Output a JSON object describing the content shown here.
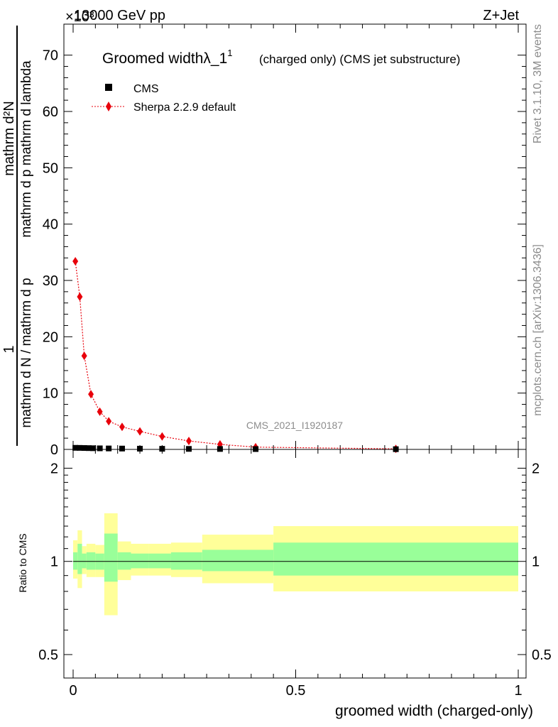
{
  "header": {
    "left": "13000 GeV pp",
    "right": "Z+Jet",
    "exponent": "×10³"
  },
  "side": {
    "rivet": "Rivet 3.1.10,  3M events",
    "mcplots": "mcplots.cern.ch [arXiv:1306.3436]"
  },
  "colors": {
    "sherpa": "#e8000b",
    "band_inner": "#99ff99",
    "band_outer": "#ffff99",
    "data": "#000000"
  },
  "chart_data": [
    {
      "type": "line",
      "title": "Groomed widthλ_1",
      "title_sup": "1",
      "subtitle": "(charged only) (CMS jet substructure)",
      "ylabel_numerator": "mathrm d²N",
      "ylabel_numer_top": "1",
      "ylabel_main": "mathrm d N / mathrm d p",
      "ylabel_full": "mathrm d p  mathrm d lambda",
      "watermark": "CMS_2021_I1920187",
      "xlim": [
        0,
        1
      ],
      "ylim": [
        0,
        75
      ],
      "yticks": [
        0,
        10,
        20,
        30,
        40,
        50,
        60,
        70
      ],
      "legend": {
        "placement": "top-left",
        "entries": [
          "CMS",
          "Sherpa 2.2.9 default"
        ]
      },
      "series": [
        {
          "name": "CMS",
          "x": [
            0.005,
            0.015,
            0.025,
            0.035,
            0.045,
            0.06,
            0.08,
            0.11,
            0.15,
            0.2,
            0.26,
            0.33,
            0.41,
            0.725
          ],
          "values": [
            0.28,
            0.27,
            0.25,
            0.23,
            0.21,
            0.19,
            0.17,
            0.15,
            0.13,
            0.11,
            0.09,
            0.08,
            0.06,
            0.04
          ]
        },
        {
          "name": "Sherpa 2.2.9 default",
          "x": [
            0.005,
            0.015,
            0.025,
            0.04,
            0.06,
            0.08,
            0.11,
            0.15,
            0.2,
            0.26,
            0.33,
            0.41,
            0.725
          ],
          "values": [
            33.4,
            27.1,
            16.6,
            9.8,
            6.7,
            5.0,
            4.0,
            3.2,
            2.3,
            1.5,
            0.9,
            0.4,
            0.1
          ]
        }
      ]
    },
    {
      "type": "area",
      "ylabel": "Ratio to CMS",
      "xlabel": "groomed width (charged-only)",
      "xlim": [
        0,
        1
      ],
      "xticks": [
        0,
        0.5,
        1
      ],
      "xtick_labels": [
        "0",
        "0.5",
        "1"
      ],
      "ylim": [
        0.42,
        2.3
      ],
      "yticks": [
        0.5,
        1,
        2
      ],
      "ytick_labels": [
        "0.5",
        "1",
        "2"
      ],
      "reference": 1,
      "bands": [
        {
          "x0": 0.0,
          "x1": 0.01,
          "in_lo": 0.94,
          "in_hi": 1.07,
          "out_lo": 0.88,
          "out_hi": 1.17
        },
        {
          "x0": 0.01,
          "x1": 0.02,
          "in_lo": 0.91,
          "in_hi": 1.14,
          "out_lo": 0.82,
          "out_hi": 1.26
        },
        {
          "x0": 0.02,
          "x1": 0.03,
          "in_lo": 0.95,
          "in_hi": 1.06,
          "out_lo": 0.91,
          "out_hi": 1.12
        },
        {
          "x0": 0.03,
          "x1": 0.05,
          "in_lo": 0.94,
          "in_hi": 1.07,
          "out_lo": 0.89,
          "out_hi": 1.14
        },
        {
          "x0": 0.05,
          "x1": 0.07,
          "in_lo": 0.94,
          "in_hi": 1.06,
          "out_lo": 0.89,
          "out_hi": 1.13
        },
        {
          "x0": 0.07,
          "x1": 0.1,
          "in_lo": 0.86,
          "in_hi": 1.23,
          "out_lo": 0.67,
          "out_hi": 1.43
        },
        {
          "x0": 0.1,
          "x1": 0.13,
          "in_lo": 0.94,
          "in_hi": 1.07,
          "out_lo": 0.87,
          "out_hi": 1.16
        },
        {
          "x0": 0.13,
          "x1": 0.17,
          "in_lo": 0.95,
          "in_hi": 1.06,
          "out_lo": 0.9,
          "out_hi": 1.14
        },
        {
          "x0": 0.17,
          "x1": 0.22,
          "in_lo": 0.95,
          "in_hi": 1.06,
          "out_lo": 0.9,
          "out_hi": 1.14
        },
        {
          "x0": 0.22,
          "x1": 0.29,
          "in_lo": 0.94,
          "in_hi": 1.07,
          "out_lo": 0.89,
          "out_hi": 1.15
        },
        {
          "x0": 0.29,
          "x1": 0.45,
          "in_lo": 0.93,
          "in_hi": 1.09,
          "out_lo": 0.85,
          "out_hi": 1.22
        },
        {
          "x0": 0.45,
          "x1": 1.0,
          "in_lo": 0.9,
          "in_hi": 1.15,
          "out_lo": 0.8,
          "out_hi": 1.3
        }
      ]
    }
  ]
}
